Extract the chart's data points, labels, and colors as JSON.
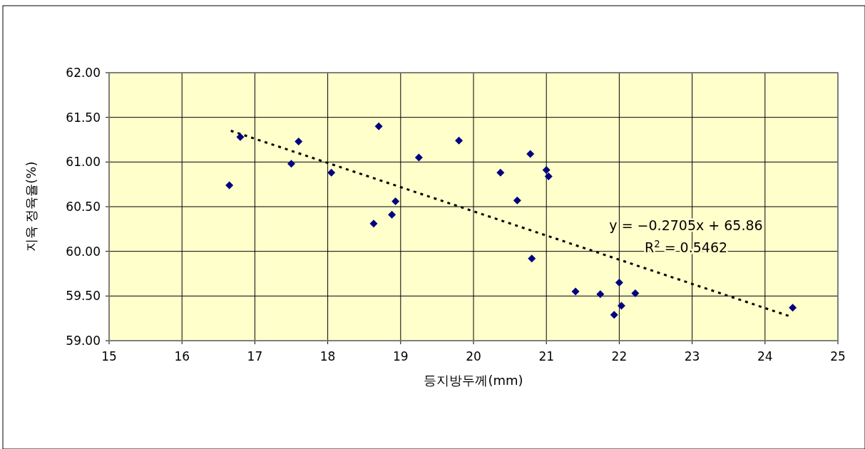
{
  "chart_data": {
    "type": "scatter",
    "xlabel": "등지방두께(mm)",
    "ylabel": "지육 정육율(%)",
    "xlim": [
      15,
      25
    ],
    "xticks": [
      15,
      16,
      17,
      18,
      19,
      20,
      21,
      22,
      23,
      24,
      25
    ],
    "ylim": [
      59,
      62
    ],
    "yticks": [
      {
        "value": 59,
        "label": "59.00"
      },
      {
        "value": 59.5,
        "label": "59.50"
      },
      {
        "value": 60,
        "label": "60.00"
      },
      {
        "value": 60.5,
        "label": "60.50"
      },
      {
        "value": 61,
        "label": "61.00"
      },
      {
        "value": 61.5,
        "label": "61.50"
      },
      {
        "value": 62,
        "label": "62.00"
      }
    ],
    "grid": true,
    "series": [
      {
        "type": "scatter",
        "color": "#000080",
        "marker": "diamond",
        "x": [
          16.65,
          16.8,
          17.5,
          17.6,
          18.05,
          18.63,
          18.7,
          18.88,
          18.93,
          19.25,
          19.8,
          20.37,
          20.6,
          20.78,
          20.8,
          21.0,
          21.03,
          21.4,
          21.74,
          21.93,
          22.0,
          22.03,
          22.22,
          24.38
        ],
        "values": [
          60.74,
          61.28,
          60.98,
          61.23,
          60.88,
          60.31,
          61.4,
          60.41,
          60.56,
          61.05,
          61.24,
          60.88,
          60.57,
          61.09,
          59.92,
          60.91,
          60.84,
          59.55,
          59.52,
          59.29,
          59.65,
          59.39,
          59.53,
          59.37
        ]
      },
      {
        "type": "line",
        "color": "#000000",
        "line_style": "dotted",
        "marker": "none",
        "x": [
          16.67,
          24.35
        ],
        "values": [
          61.35,
          59.27
        ]
      }
    ],
    "annotations": [
      "y = −0.2705x + 65.86",
      "R$^{2}$ = 0.5462"
    ]
  }
}
